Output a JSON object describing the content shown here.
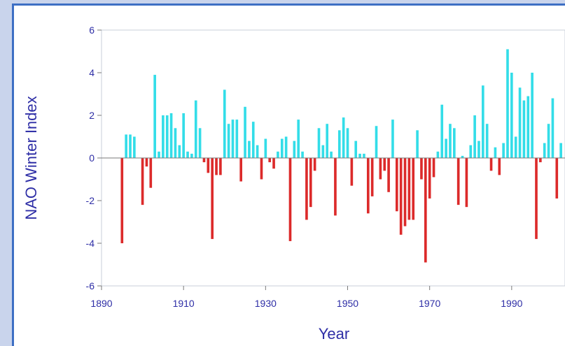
{
  "chart_data": {
    "type": "bar",
    "title": "",
    "xlabel": "Year",
    "ylabel": "NAO Winter Index",
    "xlim": [
      1890,
      2003
    ],
    "ylim": [
      -6,
      6
    ],
    "x_ticks": [
      1890,
      1910,
      1930,
      1950,
      1970,
      1990
    ],
    "y_ticks": [
      -6,
      -4,
      -2,
      0,
      2,
      4,
      6
    ],
    "grid": false,
    "legend": "none",
    "colors": {
      "positive": "#33dde8",
      "negative": "#dc2a2a",
      "axis_text": "#2e2ea6"
    },
    "x": [
      1895,
      1896,
      1897,
      1898,
      1899,
      1900,
      1901,
      1902,
      1903,
      1904,
      1905,
      1906,
      1907,
      1908,
      1909,
      1910,
      1911,
      1912,
      1913,
      1914,
      1915,
      1916,
      1917,
      1918,
      1919,
      1920,
      1921,
      1922,
      1923,
      1924,
      1925,
      1926,
      1927,
      1928,
      1929,
      1930,
      1931,
      1932,
      1933,
      1934,
      1935,
      1936,
      1937,
      1938,
      1939,
      1940,
      1941,
      1942,
      1943,
      1944,
      1945,
      1946,
      1947,
      1948,
      1949,
      1950,
      1951,
      1952,
      1953,
      1954,
      1955,
      1956,
      1957,
      1958,
      1959,
      1960,
      1961,
      1962,
      1963,
      1964,
      1965,
      1966,
      1967,
      1968,
      1969,
      1970,
      1971,
      1972,
      1973,
      1974,
      1975,
      1976,
      1977,
      1978,
      1979,
      1980,
      1981,
      1982,
      1983,
      1984,
      1985,
      1986,
      1987,
      1988,
      1989,
      1990,
      1991,
      1992,
      1993,
      1994,
      1995,
      1996,
      1997,
      1998,
      1999,
      2000,
      2001,
      2002
    ],
    "values": [
      -4.0,
      1.1,
      1.1,
      1.0,
      0.0,
      -2.2,
      -0.4,
      -1.4,
      3.9,
      0.3,
      2.0,
      2.0,
      2.1,
      1.4,
      0.6,
      2.1,
      0.3,
      0.2,
      2.7,
      1.4,
      -0.2,
      -0.7,
      -3.8,
      -0.8,
      -0.8,
      3.2,
      1.6,
      1.8,
      1.8,
      -1.1,
      2.4,
      0.8,
      1.7,
      0.6,
      -1.0,
      0.9,
      -0.2,
      -0.5,
      0.3,
      0.9,
      1.0,
      -3.9,
      0.8,
      1.8,
      0.3,
      -2.9,
      -2.3,
      -0.6,
      1.4,
      0.6,
      1.6,
      0.3,
      -2.7,
      1.3,
      1.9,
      1.4,
      -1.3,
      0.8,
      0.2,
      0.2,
      -2.6,
      -1.8,
      1.5,
      -1.0,
      -0.6,
      -1.6,
      1.8,
      -2.5,
      -3.6,
      -3.2,
      -2.9,
      -2.9,
      1.3,
      -1.0,
      -4.9,
      -1.9,
      -0.9,
      0.3,
      2.5,
      0.9,
      1.6,
      1.4,
      -2.2,
      0.1,
      -2.3,
      0.6,
      2.0,
      0.8,
      3.4,
      1.6,
      -0.6,
      0.5,
      -0.8,
      0.7,
      5.1,
      4.0,
      1.0,
      3.3,
      2.7,
      2.9,
      4.0,
      -3.8,
      -0.2,
      0.7,
      1.6,
      2.8,
      -1.9,
      0.7
    ]
  }
}
